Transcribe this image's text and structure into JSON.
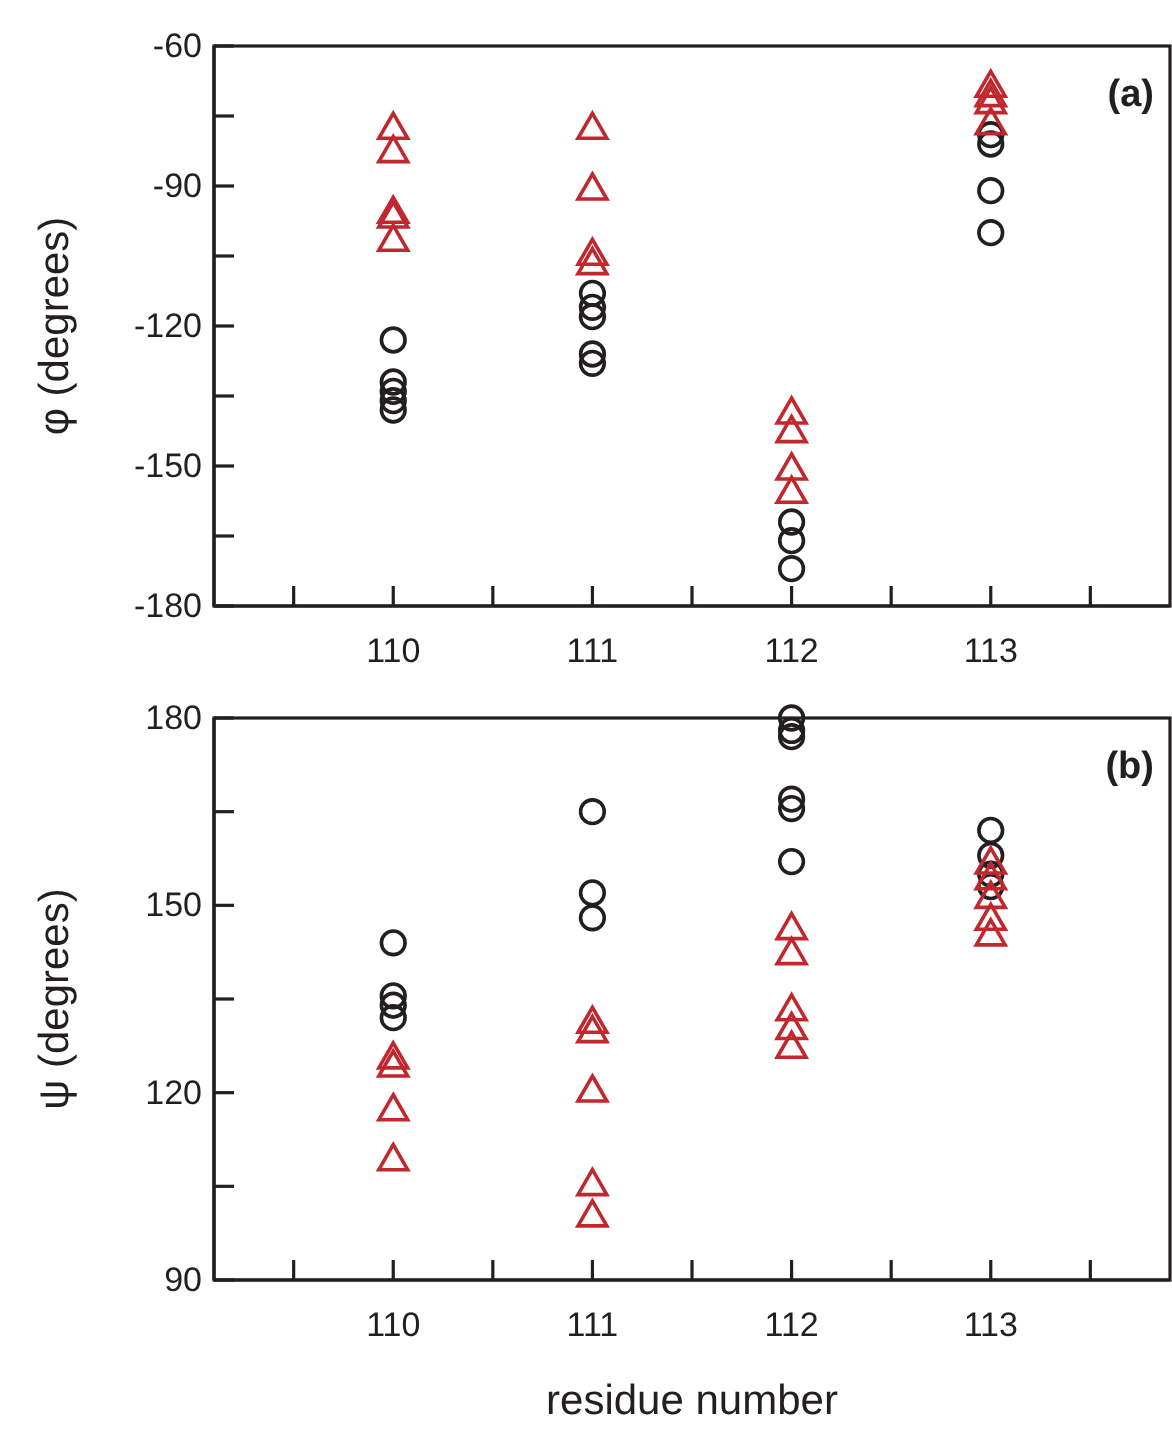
{
  "chart_data": [
    {
      "type": "scatter",
      "ylabel": "φ (degrees)",
      "annotations": [
        "(a)"
      ],
      "xlim": [
        109.1,
        113.9
      ],
      "ylim": [
        -180,
        -60
      ],
      "xticks": [
        {
          "value": 109.5,
          "label": null
        },
        110,
        {
          "value": 110.5,
          "label": null
        },
        111,
        {
          "value": 111.5,
          "label": null
        },
        112,
        {
          "value": 112.5,
          "label": null
        },
        113,
        {
          "value": 113.5,
          "label": null
        }
      ],
      "yticks": [
        -180,
        {
          "value": -165,
          "label": null
        },
        -150,
        {
          "value": -135,
          "label": null
        },
        -120,
        {
          "value": -105,
          "label": null
        },
        -90,
        {
          "value": -75,
          "label": null
        },
        -60
      ],
      "series": [
        {
          "color": "#231f20",
          "marker": "circle",
          "x": [
            110,
            110,
            110,
            110,
            110,
            111,
            111,
            111,
            111,
            111,
            112,
            112,
            112,
            113,
            113,
            113,
            113
          ],
          "values": [
            -123,
            -132,
            -134,
            -136,
            -138,
            -113,
            -116,
            -118,
            -126,
            -128,
            -162,
            -166,
            -172,
            -79,
            -81,
            -91,
            -100
          ]
        },
        {
          "color": "#c0282d",
          "marker": "triangle",
          "x": [
            110,
            110,
            110,
            110,
            110,
            111,
            111,
            111,
            111,
            112,
            112,
            112,
            112,
            113,
            113,
            113,
            113
          ],
          "values": [
            -78,
            -83,
            -96,
            -97,
            -102,
            -78,
            -91,
            -105,
            -107,
            -139,
            -143,
            -151,
            -156,
            -69,
            -71,
            -72.5,
            -77
          ]
        }
      ]
    },
    {
      "type": "scatter",
      "xlabel": "residue number",
      "ylabel": "ψ (degrees)",
      "annotations": [
        "(b)"
      ],
      "xlim": [
        109.1,
        113.9
      ],
      "ylim": [
        90,
        180
      ],
      "xticks": [
        {
          "value": 109.5,
          "label": null
        },
        110,
        {
          "value": 110.5,
          "label": null
        },
        111,
        {
          "value": 111.5,
          "label": null
        },
        112,
        {
          "value": 112.5,
          "label": null
        },
        113,
        {
          "value": 113.5,
          "label": null
        }
      ],
      "yticks": [
        90,
        {
          "value": 105,
          "label": null
        },
        120,
        {
          "value": 135,
          "label": null
        },
        150,
        {
          "value": 165,
          "label": null
        },
        180
      ],
      "series": [
        {
          "color": "#231f20",
          "marker": "circle",
          "x": [
            110,
            110,
            110,
            110,
            111,
            111,
            111,
            112,
            112,
            112,
            112,
            112,
            112,
            113,
            113,
            113,
            113
          ],
          "values": [
            144,
            135.5,
            134,
            132,
            165,
            152,
            148,
            180,
            178,
            177,
            167,
            165.5,
            157,
            162,
            158,
            155,
            153
          ]
        },
        {
          "color": "#c0282d",
          "marker": "triangle",
          "x": [
            110,
            110,
            110,
            110,
            111,
            111,
            111,
            111,
            111,
            112,
            112,
            112,
            112,
            112,
            113,
            113,
            113,
            113,
            113
          ],
          "values": [
            125.3,
            124,
            117,
            109,
            131,
            129.5,
            120,
            105,
            100,
            146,
            142,
            133,
            130,
            127,
            156.5,
            154,
            151,
            147.5,
            145
          ]
        }
      ]
    }
  ]
}
